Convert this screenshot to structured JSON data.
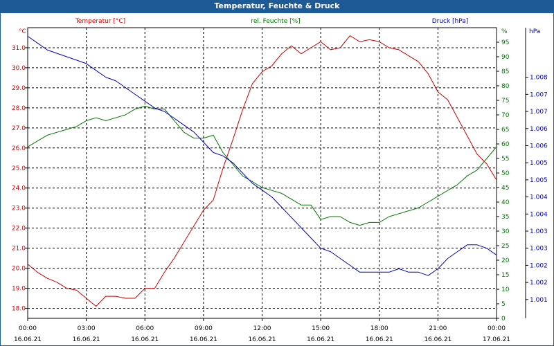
{
  "window": {
    "title": "Temperatur, Feuchte & Druck"
  },
  "colors": {
    "temperature": "#cc0000",
    "humidity": "#007700",
    "pressure": "#0000bb",
    "axis": "#000000",
    "grid": "#000000"
  },
  "chart_data": {
    "type": "line",
    "title": "Temperatur, Feuchte & Druck",
    "x": {
      "tick_times": [
        "00:00",
        "03:00",
        "06:00",
        "09:00",
        "12:00",
        "15:00",
        "18:00",
        "21:00",
        "00:00"
      ],
      "tick_dates": [
        "16.06.21",
        "16.06.21",
        "16.06.21",
        "16.06.21",
        "16.06.21",
        "16.06.21",
        "16.06.21",
        "16.06.21",
        "17.06.21"
      ],
      "range_hours": [
        0,
        24
      ]
    },
    "axes": {
      "temperature": {
        "label": "Temperatur [°C]",
        "unit": "°C",
        "ylim": [
          17.5,
          32.0
        ],
        "ticks": [
          "18.0",
          "19.0",
          "20.0",
          "21.0",
          "22.0",
          "23.0",
          "24.0",
          "25.0",
          "26.0",
          "27.0",
          "28.0",
          "29.0",
          "30.0",
          "31.0"
        ]
      },
      "humidity": {
        "label": "rel. Feuchte [%]",
        "unit": "%",
        "ylim": [
          0,
          100
        ],
        "ticks": [
          "0",
          "5",
          "10",
          "15",
          "20",
          "25",
          "30",
          "35",
          "40",
          "45",
          "50",
          "55",
          "60",
          "65",
          "70",
          "75",
          "80",
          "85",
          "90",
          "95"
        ]
      },
      "pressure": {
        "label": "Druck [hPa]",
        "unit": "hPa",
        "ylim": [
          1000.45,
          1008.95
        ],
        "ticks": [
          "1.001",
          "1.002",
          "1.002",
          "1.003",
          "1.003",
          "1.004",
          "1.004",
          "1.005",
          "1.005",
          "1.006",
          "1.006",
          "1.007",
          "1.007",
          "1.008"
        ]
      }
    },
    "series": [
      {
        "name": "Temperatur [°C]",
        "axis": "temperature",
        "hours": [
          0,
          0.5,
          1,
          1.5,
          2,
          2.5,
          3,
          3.5,
          4,
          4.5,
          5,
          5.5,
          6,
          6.5,
          7,
          7.5,
          8,
          8.5,
          9,
          9.5,
          10,
          10.5,
          11,
          11.5,
          12,
          12.5,
          13,
          13.5,
          14,
          14.5,
          15,
          15.5,
          16,
          16.5,
          17,
          17.5,
          18,
          18.5,
          19,
          19.5,
          20,
          20.5,
          21,
          21.5,
          22,
          22.5,
          23,
          23.5,
          24
        ],
        "values": [
          20.2,
          19.8,
          19.5,
          19.3,
          19.0,
          18.9,
          18.5,
          18.1,
          18.6,
          18.6,
          18.5,
          18.5,
          19.0,
          19.0,
          19.8,
          20.5,
          21.3,
          22.1,
          22.9,
          23.4,
          25.0,
          26.4,
          27.9,
          29.2,
          29.8,
          30.1,
          30.7,
          31.1,
          30.7,
          31.0,
          31.3,
          30.9,
          31.0,
          31.6,
          31.3,
          31.4,
          31.3,
          31.0,
          30.9,
          30.6,
          30.3,
          29.7,
          28.8,
          28.4,
          27.5,
          26.6,
          25.7,
          25.2,
          24.4
        ]
      },
      {
        "name": "rel. Feuchte [%]",
        "axis": "humidity",
        "hours": [
          0,
          0.5,
          1,
          1.5,
          2,
          2.5,
          3,
          3.5,
          4,
          4.5,
          5,
          5.5,
          6,
          6.5,
          7,
          7.5,
          8,
          8.5,
          9,
          9.5,
          10,
          10.5,
          11,
          11.5,
          12,
          12.5,
          13,
          13.5,
          14,
          14.5,
          15,
          15.5,
          16,
          16.5,
          17,
          17.5,
          18,
          18.5,
          19,
          19.5,
          20,
          20.5,
          21,
          21.5,
          22,
          22.5,
          23,
          23.5,
          24
        ],
        "values": [
          59,
          61,
          63,
          64,
          65,
          66,
          68,
          69,
          68,
          69,
          70,
          72,
          73,
          72,
          72,
          68,
          64,
          62,
          62,
          63,
          57,
          53,
          49,
          47,
          45,
          44,
          43,
          41,
          39,
          39,
          34,
          35,
          35,
          33,
          32,
          33,
          33,
          35,
          36,
          37,
          38,
          40,
          42,
          44,
          46,
          49,
          51,
          55,
          59
        ]
      },
      {
        "name": "Druck [hPa]",
        "axis": "pressure",
        "hours": [
          0,
          0.5,
          1,
          1.5,
          2,
          2.5,
          3,
          3.5,
          4,
          4.5,
          5,
          5.5,
          6,
          6.5,
          7,
          7.5,
          8,
          8.5,
          9,
          9.5,
          10,
          10.5,
          11,
          11.5,
          12,
          12.5,
          13,
          13.5,
          14,
          14.5,
          15,
          15.5,
          16,
          16.5,
          17,
          17.5,
          18,
          18.5,
          19,
          19.5,
          20,
          20.5,
          21,
          21.5,
          22,
          22.5,
          23,
          23.5,
          24
        ],
        "values": [
          1008.7,
          1008.5,
          1008.3,
          1008.2,
          1008.1,
          1008.0,
          1007.9,
          1007.7,
          1007.5,
          1007.4,
          1007.2,
          1007.0,
          1006.8,
          1006.6,
          1006.5,
          1006.3,
          1006.1,
          1005.9,
          1005.6,
          1005.3,
          1005.2,
          1005.0,
          1004.7,
          1004.4,
          1004.2,
          1004.0,
          1003.7,
          1003.4,
          1003.1,
          1002.8,
          1002.5,
          1002.4,
          1002.2,
          1002.0,
          1001.8,
          1001.8,
          1001.8,
          1001.8,
          1001.9,
          1001.8,
          1001.8,
          1001.7,
          1001.9,
          1002.2,
          1002.4,
          1002.6,
          1002.6,
          1002.5,
          1002.3
        ]
      }
    ]
  }
}
